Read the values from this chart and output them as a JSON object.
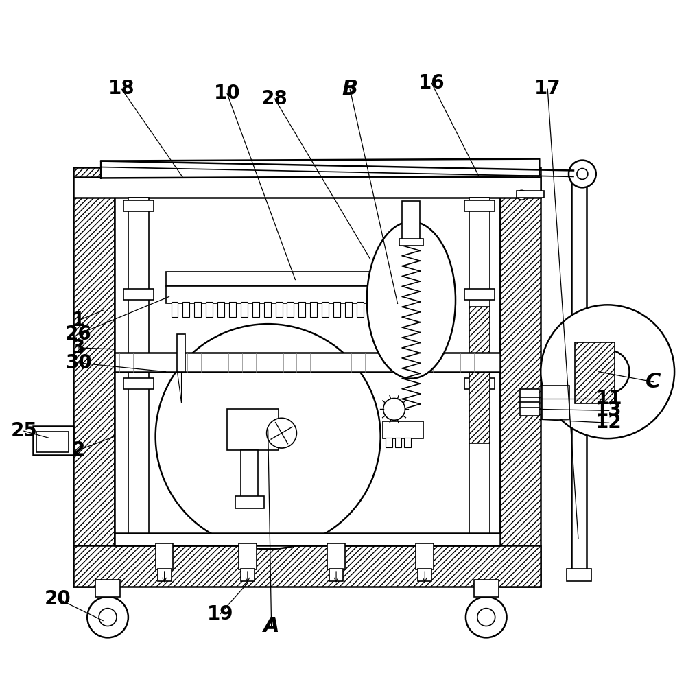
{
  "bg_color": "#ffffff",
  "lc": "#000000",
  "fig_width": 10.0,
  "fig_height": 9.94,
  "annotations": {
    "18": [
      0.175,
      0.87,
      0.265,
      0.74
    ],
    "10": [
      0.33,
      0.863,
      0.43,
      0.59
    ],
    "28": [
      0.4,
      0.855,
      0.54,
      0.62
    ],
    "B": [
      0.51,
      0.87,
      0.58,
      0.555
    ],
    "16": [
      0.63,
      0.878,
      0.7,
      0.74
    ],
    "17": [
      0.8,
      0.87,
      0.845,
      0.21
    ],
    "1": [
      0.112,
      0.53,
      0.148,
      0.545
    ],
    "26": [
      0.112,
      0.51,
      0.245,
      0.565
    ],
    "3": [
      0.112,
      0.49,
      0.165,
      0.488
    ],
    "30": [
      0.112,
      0.468,
      0.24,
      0.455
    ],
    "25": [
      0.032,
      0.368,
      0.068,
      0.358
    ],
    "2": [
      0.112,
      0.34,
      0.165,
      0.36
    ],
    "20": [
      0.082,
      0.122,
      0.148,
      0.09
    ],
    "19": [
      0.32,
      0.1,
      0.36,
      0.145
    ],
    "A": [
      0.395,
      0.082,
      0.39,
      0.37
    ],
    "11": [
      0.89,
      0.415,
      0.788,
      0.415
    ],
    "13": [
      0.89,
      0.398,
      0.788,
      0.4
    ],
    "12": [
      0.89,
      0.38,
      0.788,
      0.385
    ],
    "C": [
      0.955,
      0.44,
      0.875,
      0.455
    ]
  }
}
